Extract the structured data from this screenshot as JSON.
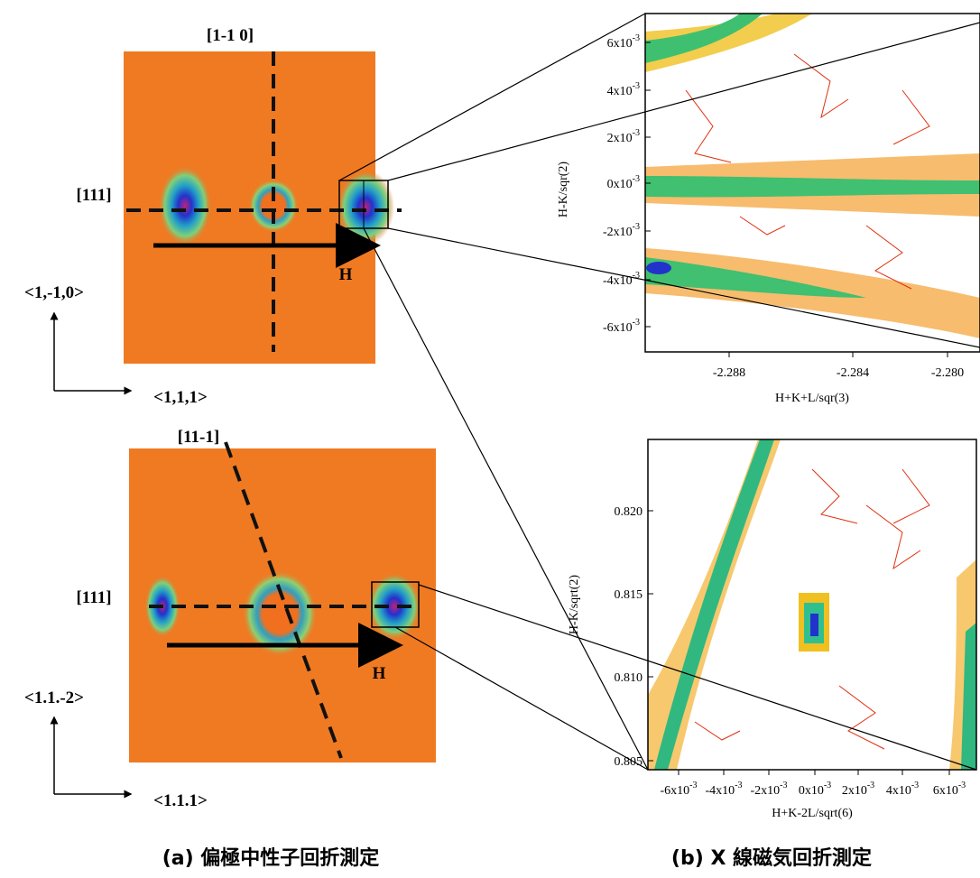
{
  "left_panels": [
    {
      "direction_label": "[1-1 0]",
      "spot_label": "[111]",
      "arrow_label": "H",
      "axis_up": "<1,-1,0>",
      "axis_right": "<1,1,1>"
    },
    {
      "direction_label": "[11-1]",
      "spot_label": "[111]",
      "arrow_label": "H",
      "axis_up": "<1.1.-2>",
      "axis_right": "<1.1.1>"
    }
  ],
  "right_panels": [
    {
      "y_label": "H-K/sqr(2)",
      "x_label": "H+K+L/sqr(3)",
      "yticks": [
        {
          "base": "6x10",
          "exp": "-3"
        },
        {
          "base": "4x10",
          "exp": "-3"
        },
        {
          "base": "2x10",
          "exp": "-3"
        },
        {
          "base": "0x10",
          "exp": "-3"
        },
        {
          "base": "-2x10",
          "exp": "-3"
        },
        {
          "base": "-4x10",
          "exp": "-3"
        },
        {
          "base": "-6x10",
          "exp": "-3"
        }
      ],
      "xticks": [
        {
          "base": "-2.288",
          "exp": ""
        },
        {
          "base": "-2.284",
          "exp": ""
        },
        {
          "base": "-2.280",
          "exp": ""
        }
      ]
    },
    {
      "y_label": "H-K/sqrt(2)",
      "x_label": "H+K-2L/sqrt(6)",
      "yticks": [
        {
          "base": "0.820",
          "exp": ""
        },
        {
          "base": "0.815",
          "exp": ""
        },
        {
          "base": "0.810",
          "exp": ""
        },
        {
          "base": "0.805",
          "exp": ""
        }
      ],
      "xticks": [
        {
          "base": "-6x10",
          "exp": "-3"
        },
        {
          "base": "-4x10",
          "exp": "-3"
        },
        {
          "base": "-2x10",
          "exp": "-3"
        },
        {
          "base": "0x10",
          "exp": "-3"
        },
        {
          "base": "2x10",
          "exp": "-3"
        },
        {
          "base": "4x10",
          "exp": "-3"
        },
        {
          "base": "6x10",
          "exp": "-3"
        }
      ]
    }
  ],
  "captions": [
    "(a) 偏極中性子回折測定",
    "(b) X 線磁気回折測定"
  ]
}
